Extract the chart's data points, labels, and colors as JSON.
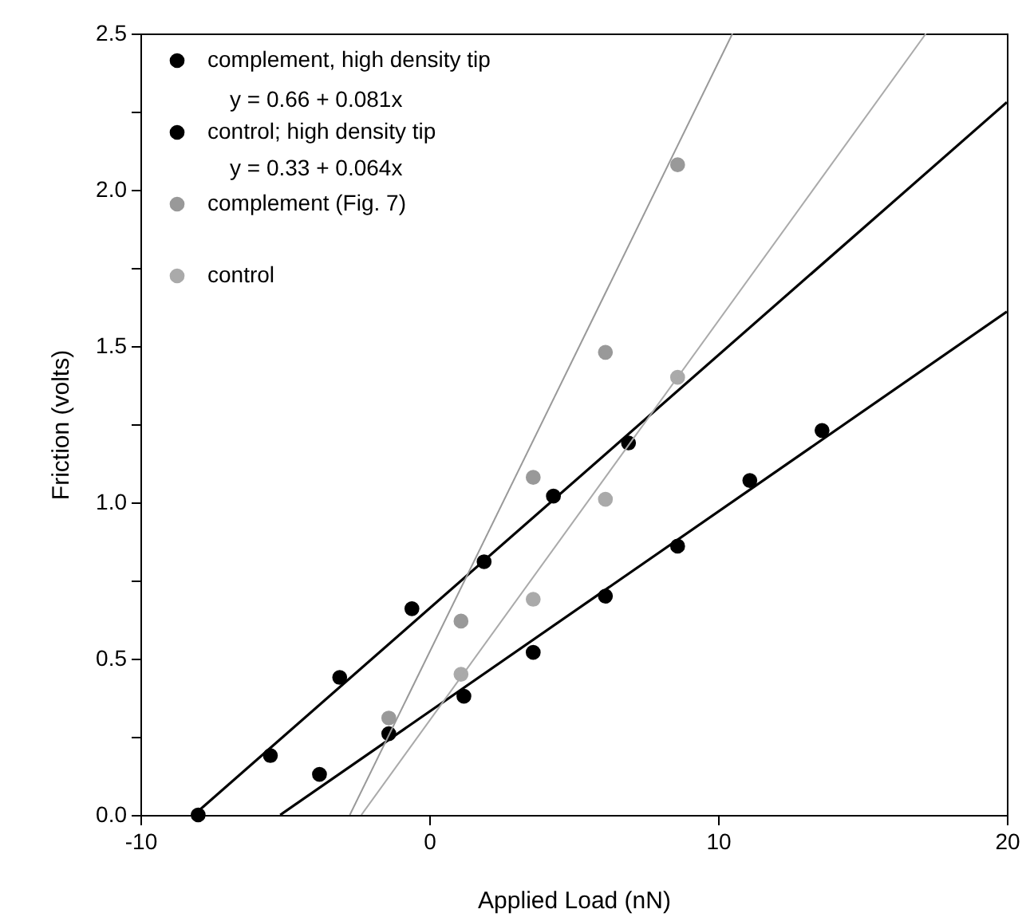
{
  "chart_data": {
    "type": "scatter",
    "xlabel": "Applied Load (nN)",
    "ylabel": "Friction (volts)",
    "xlim": [
      -10,
      20
    ],
    "xticks": [
      -10,
      0,
      10,
      20
    ],
    "ylim": [
      0,
      2.5
    ],
    "yticks": [
      {
        "value": 0,
        "label": "0.0"
      },
      {
        "value": 0.25,
        "label": null
      },
      {
        "value": 0.5,
        "label": "0.5"
      },
      {
        "value": 0.75,
        "label": null
      },
      {
        "value": 1,
        "label": "1.0"
      },
      {
        "value": 1.25,
        "label": null
      },
      {
        "value": 1.5,
        "label": "1.5"
      },
      {
        "value": 1.75,
        "label": null
      },
      {
        "value": 2,
        "label": "2.0"
      },
      {
        "value": 2.25,
        "label": null
      },
      {
        "value": 2.5,
        "label": "2.5"
      }
    ],
    "grid": false,
    "legend": "top left",
    "marker": "circle",
    "annotations": [
      "y = 0.66 + 0.081x",
      "y = 0.33 + 0.064x"
    ],
    "series": [
      {
        "name": "complement, high density tip",
        "color": "#000000",
        "x": [
          -8.0,
          -5.5,
          -3.1,
          -0.6,
          1.9,
          4.3,
          6.9
        ],
        "values": [
          0.0,
          0.19,
          0.44,
          0.66,
          0.81,
          1.02,
          1.19
        ]
      },
      {
        "name": "control; high density tip",
        "color": "#000000",
        "x": [
          -3.8,
          -1.4,
          1.2,
          3.6,
          6.1,
          8.6,
          11.1,
          13.6
        ],
        "values": [
          0.13,
          0.26,
          0.38,
          0.52,
          0.7,
          0.86,
          1.07,
          1.23
        ]
      },
      {
        "name": "complement (Fig. 7)",
        "color": "#999999",
        "x": [
          -1.4,
          1.1,
          3.6,
          6.1,
          8.6
        ],
        "values": [
          0.31,
          0.62,
          1.08,
          1.48,
          2.08
        ]
      },
      {
        "name": "control",
        "color": "#aaaaaa",
        "x": [
          1.1,
          3.6,
          6.1,
          8.6
        ],
        "values": [
          0.45,
          0.69,
          1.01,
          1.4
        ]
      },
      {
        "type": "line",
        "marker": "none",
        "color": "#000000",
        "x": [
          -8.15,
          20
        ],
        "values": [
          0.0,
          2.28
        ]
      },
      {
        "type": "line",
        "marker": "none",
        "color": "#000000",
        "x": [
          -5.16,
          20
        ],
        "values": [
          0.0,
          1.61
        ]
      },
      {
        "type": "line",
        "marker": "none",
        "color": "#999999",
        "x": [
          -2.75,
          10.5
        ],
        "values": [
          0.0,
          2.5
        ]
      },
      {
        "type": "line",
        "marker": "none",
        "color": "#aaaaaa",
        "x": [
          -2.35,
          17.2
        ],
        "values": [
          0.0,
          2.5
        ]
      }
    ]
  }
}
